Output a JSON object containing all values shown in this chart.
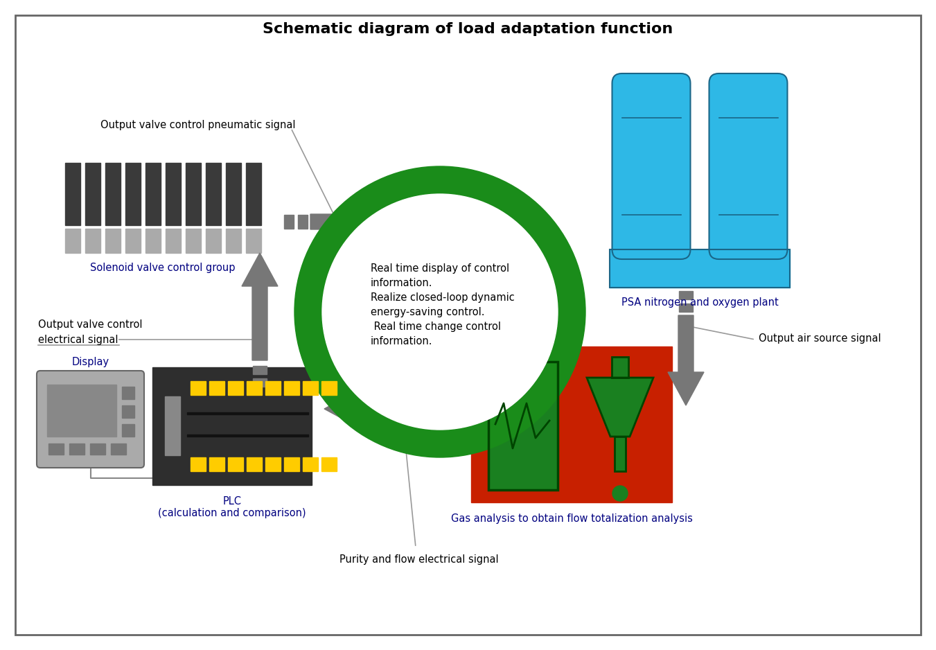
{
  "title": "Schematic diagram of load adaptation function",
  "title_fontsize": 16,
  "bg": "#ffffff",
  "ring_color": "#1a8c1a",
  "center_text": "Real time display of control\ninformation.\nRealize closed-loop dynamic\nenergy-saving control.\n Real time change control\ninformation.",
  "solenoid_label": "Solenoid valve control group",
  "psa_label": "PSA nitrogen and oxygen plant",
  "plc_label": "PLC\n(calculation and comparison)",
  "gas_label": "Gas analysis to obtain flow totalization analysis",
  "display_label": "Display",
  "signal_top": "Output valve control pneumatic signal",
  "signal_left_1": "Output valve control",
  "signal_left_2": "electrical signal",
  "signal_right": "Output air source signal",
  "signal_bottom": "Purity and flow electrical signal",
  "psa_blue": "#2eb8e6",
  "psa_outline": "#1a6688",
  "gas_red": "#c82000",
  "gas_green": "#1a8020",
  "gas_outline": "#004400",
  "plc_body": "#2e2e2e",
  "plc_led": "#ffcc00",
  "display_gray": "#aaaaaa",
  "display_screen": "#888888",
  "display_btn": "#777777",
  "solenoid_dark": "#3a3a3a",
  "solenoid_light": "#aaaaaa",
  "arrow_gray": "#777777",
  "line_gray": "#999999",
  "text_blue": "#000080"
}
